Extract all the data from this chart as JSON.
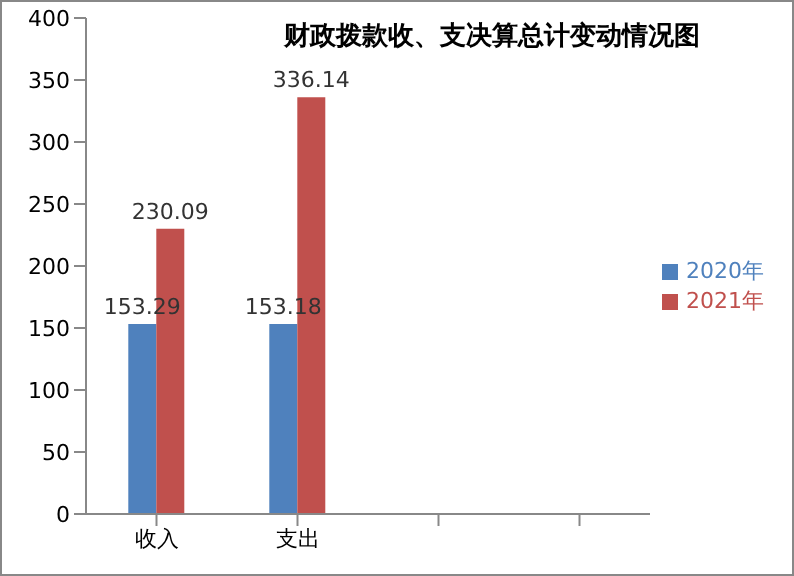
{
  "chart_data": {
    "type": "bar",
    "title": "财政拨款收、支决算总计变动情况图",
    "categories": [
      "收入",
      "支出",
      null,
      null
    ],
    "series": [
      {
        "name": "2020年",
        "color": "#4f81bd",
        "values": [
          153.29,
          153.18,
          null,
          null
        ]
      },
      {
        "name": "2021年",
        "color": "#c0504d",
        "values": [
          230.09,
          336.14,
          null,
          null
        ]
      }
    ],
    "ylim": [
      0,
      400
    ],
    "yticks": [
      0,
      50,
      100,
      150,
      200,
      250,
      300,
      350,
      400
    ],
    "grid": false,
    "legend": "right",
    "data_labels": true
  }
}
